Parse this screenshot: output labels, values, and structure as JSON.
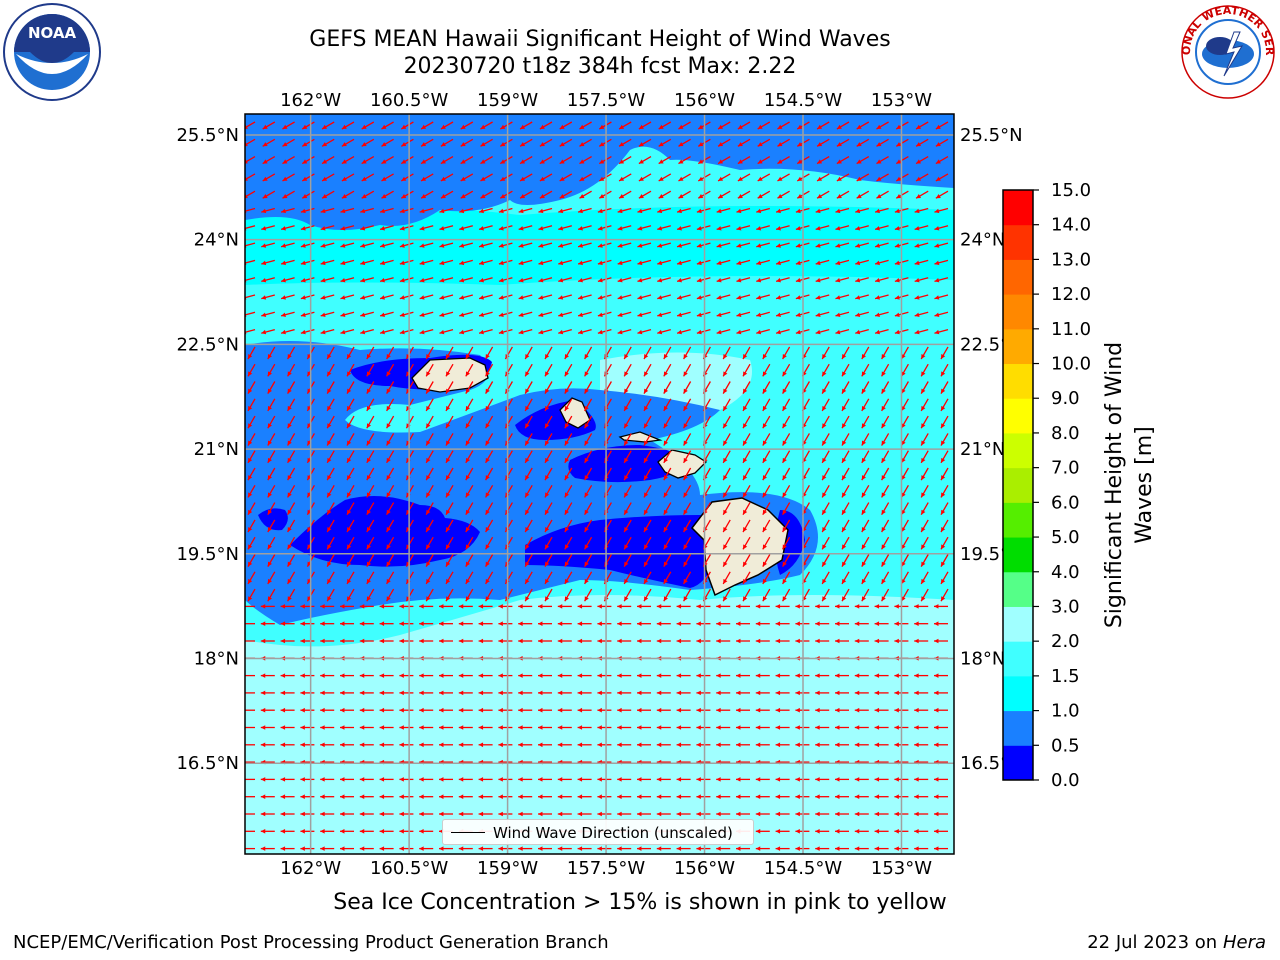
{
  "title": {
    "line1": "GEFS MEAN Hawaii Significant Height of Wind Waves",
    "line2": "20230720 t18z 384h fcst   Max: 2.22"
  },
  "logos": {
    "left": {
      "icon": "noaa-logo",
      "text": "NOAA"
    },
    "right": {
      "icon": "nws-logo",
      "text": "NATIONAL WEATHER SERVICE"
    }
  },
  "map": {
    "lon_ticks": [
      "162°W",
      "160.5°W",
      "159°W",
      "157.5°W",
      "156°W",
      "154.5°W",
      "153°W"
    ],
    "lat_ticks": [
      "25.5°N",
      "24°N",
      "22.5°N",
      "21°N",
      "19.5°N",
      "18°N",
      "16.5°N"
    ],
    "lon_range": [
      -163,
      -152.2
    ],
    "lat_range": [
      15.2,
      25.8
    ],
    "legend": "Wind Wave Direction (unscaled)",
    "arrow_color": "#ff0000",
    "land_color": "#f0ecd8"
  },
  "colorbar": {
    "label": "Significant Height of Wind Waves [m]",
    "ticks": [
      "0.0",
      "0.5",
      "1.0",
      "1.5",
      "2.0",
      "3.0",
      "4.0",
      "5.0",
      "6.0",
      "7.0",
      "8.0",
      "9.0",
      "10.0",
      "11.0",
      "12.0",
      "13.0",
      "14.0",
      "15.0"
    ],
    "colors": [
      "#0000ff",
      "#1a80ff",
      "#00ffff",
      "#40ffff",
      "#a0ffff",
      "#55ff88",
      "#00dd00",
      "#55ee00",
      "#aaee00",
      "#ccff00",
      "#ffff00",
      "#ffdd00",
      "#ffaa00",
      "#ff8800",
      "#ff6600",
      "#ff3300",
      "#ff0000"
    ]
  },
  "subtitle": "Sea Ice Concentration > 15% is shown in pink to yellow",
  "footer": {
    "left": "NCEP/EMC/Verification Post Processing Product Generation Branch",
    "right_date": "22 Jul 2023 on ",
    "right_host": "Hera"
  }
}
